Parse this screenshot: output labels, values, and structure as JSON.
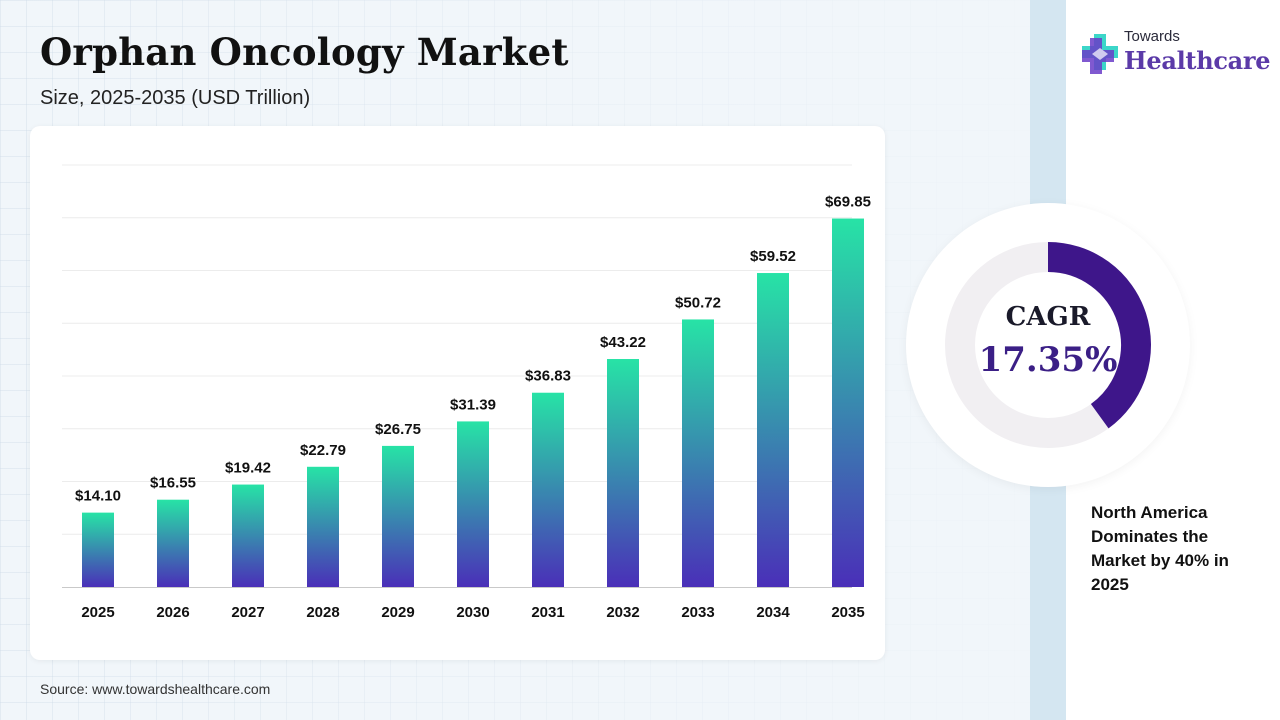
{
  "title": "Orphan Oncology Market",
  "subtitle": "Size, 2025-2035 (USD Trillion)",
  "source": "Source: www.towardshealthcare.com",
  "logo": {
    "small": "Towards",
    "big": "Healthcare",
    "icon": "medical-cross-icon"
  },
  "cagr": {
    "label": "CAGR",
    "value": "17.35%",
    "fraction": 0.4
  },
  "note": "North America Dominates the Market by 40% in 2025",
  "colors": {
    "bar_top": "#27e3a6",
    "bar_bottom": "#4a2fb8",
    "cagr_ring": "#3e168a",
    "cagr_track": "#f1eff2",
    "brand_purple": "#5b3aa8"
  },
  "chart_data": {
    "type": "bar",
    "categories": [
      "2025",
      "2026",
      "2027",
      "2028",
      "2029",
      "2030",
      "2031",
      "2032",
      "2033",
      "2034",
      "2035"
    ],
    "values": [
      14.1,
      16.55,
      19.42,
      22.79,
      26.75,
      31.39,
      36.83,
      43.22,
      50.72,
      59.52,
      69.85
    ],
    "labels": [
      "$14.10",
      "$16.55",
      "$19.42",
      "$22.79",
      "$26.75",
      "$31.39",
      "$36.83",
      "$43.22",
      "$50.72",
      "$59.52",
      "$69.85"
    ],
    "ylim": [
      0,
      80
    ],
    "grid": true,
    "xlabel": "",
    "ylabel": ""
  }
}
